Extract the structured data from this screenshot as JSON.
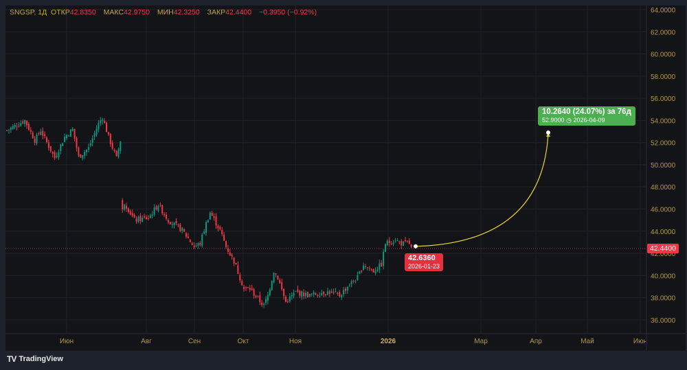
{
  "legend": {
    "symbol": "SNGSP, 1Д",
    "open_label": "ОТКР",
    "open": "42.8350",
    "high_label": "МАКС",
    "high": "42.9750",
    "low_label": "МИН",
    "low": "42.3250",
    "close_label": "ЗАКР",
    "close": "42.4400",
    "change": "−0.3950 (−0.92%)"
  },
  "price_axis": [
    "64.0000",
    "62.0000",
    "60.0000",
    "58.0000",
    "56.0000",
    "54.0000",
    "52.0000",
    "50.0000",
    "48.0000",
    "46.0000",
    "44.0000",
    "42.0000",
    "40.0000",
    "38.0000",
    "36.0000"
  ],
  "time_axis": [
    "Июн",
    "Авг",
    "Сен",
    "Окт",
    "Ноя",
    "2026",
    "Мар",
    "Апр",
    "Май",
    "Июн"
  ],
  "last_price": "42.4400",
  "forecast": {
    "start_price": "42.6360",
    "start_date": "2026-01-23",
    "end_summary": "10.2640 (24.07%) за 76д",
    "end_price": "52.9000",
    "end_date": "2026-04-09"
  },
  "footer": {
    "brand": "TradingView"
  },
  "colors": {
    "up": "#089981",
    "down": "#f23645",
    "arc": "#e8d23a",
    "target": "#4caf50"
  },
  "chart_data": {
    "type": "candlestick",
    "ylim": [
      36,
      64
    ],
    "anchors_index_close": [
      [
        0,
        53.1
      ],
      [
        9,
        54.0
      ],
      [
        14,
        52.2
      ],
      [
        17,
        53.1
      ],
      [
        24,
        50.6
      ],
      [
        29,
        52.5
      ],
      [
        33,
        53.2
      ],
      [
        36,
        50.7
      ],
      [
        41,
        51.5
      ],
      [
        46,
        53.7
      ],
      [
        48,
        54.3
      ],
      [
        51,
        52.5
      ],
      [
        55,
        50.6
      ],
      [
        57,
        52.2
      ],
      [
        58,
        46.0
      ],
      [
        59,
        46.6
      ],
      [
        64,
        45.0
      ],
      [
        71,
        45.2
      ],
      [
        76,
        46.4
      ],
      [
        81,
        45.0
      ],
      [
        88,
        44.1
      ],
      [
        94,
        42.6
      ],
      [
        97,
        42.9
      ],
      [
        100,
        44.7
      ],
      [
        102,
        45.7
      ],
      [
        107,
        44.1
      ],
      [
        110,
        42.6
      ],
      [
        114,
        41.3
      ],
      [
        119,
        38.8
      ],
      [
        122,
        38.8
      ],
      [
        126,
        37.9
      ],
      [
        129,
        37.3
      ],
      [
        131,
        38.2
      ],
      [
        134,
        40.4
      ],
      [
        136,
        39.8
      ],
      [
        140,
        37.6
      ],
      [
        145,
        38.5
      ],
      [
        152,
        38.2
      ],
      [
        159,
        38.5
      ],
      [
        162,
        38.5
      ],
      [
        167,
        38.2
      ],
      [
        172,
        39.2
      ],
      [
        176,
        39.8
      ],
      [
        179,
        41.0
      ],
      [
        184,
        40.4
      ],
      [
        188,
        41.0
      ],
      [
        190,
        42.9
      ],
      [
        195,
        43.2
      ],
      [
        198,
        42.9
      ],
      [
        202,
        42.9
      ],
      [
        203,
        42.44
      ]
    ]
  }
}
